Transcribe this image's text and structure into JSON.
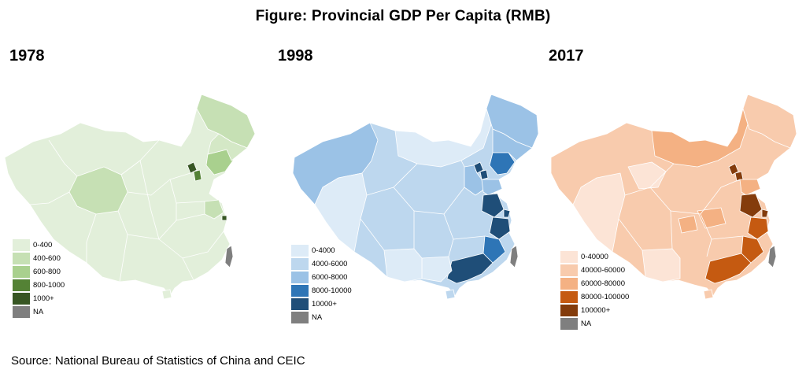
{
  "title": "Figure: Provincial GDP Per Capita (RMB)",
  "source": "Source: National Bureau of Statistics of China and CEIC",
  "na_color": "#7f7f7f",
  "panels": [
    {
      "year": "1978",
      "legend": [
        {
          "label": "0-400",
          "color": "#e2efda"
        },
        {
          "label": "400-600",
          "color": "#c6e0b4"
        },
        {
          "label": "600-800",
          "color": "#a9d08e"
        },
        {
          "label": "800-1000",
          "color": "#548235"
        },
        {
          "label": "1000+",
          "color": "#375623"
        },
        {
          "label": "NA",
          "color": "#7f7f7f"
        }
      ]
    },
    {
      "year": "1998",
      "legend": [
        {
          "label": "0-4000",
          "color": "#ddebf7"
        },
        {
          "label": "4000-6000",
          "color": "#bdd7ee"
        },
        {
          "label": "6000-8000",
          "color": "#9bc2e6"
        },
        {
          "label": "8000-10000",
          "color": "#2e75b6"
        },
        {
          "label": "10000+",
          "color": "#1f4e78"
        },
        {
          "label": "NA",
          "color": "#7f7f7f"
        }
      ]
    },
    {
      "year": "2017",
      "legend": [
        {
          "label": "0-40000",
          "color": "#fce4d6"
        },
        {
          "label": "40000-60000",
          "color": "#f8cbad"
        },
        {
          "label": "60000-80000",
          "color": "#f4b183"
        },
        {
          "label": "80000-100000",
          "color": "#c55a11"
        },
        {
          "label": "100000+",
          "color": "#843c0c"
        },
        {
          "label": "NA",
          "color": "#7f7f7f"
        }
      ]
    }
  ]
}
